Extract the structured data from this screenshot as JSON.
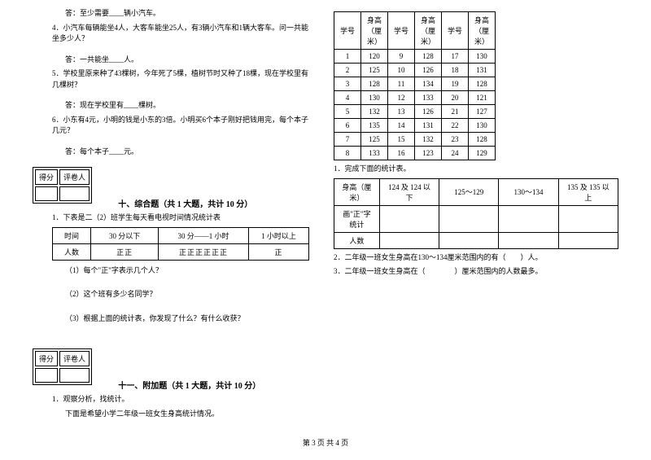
{
  "left": {
    "q3_ans": "答：至少需要____辆小汽车。",
    "q4": "4．小汽车每辆能坐4人，大客车能坐25人，有3辆小汽车和1辆大客车。问一共能坐多少人？",
    "q4_ans": "答：一共能坐____人。",
    "q5": "5．学校里原来种了43棵树，今年死了5棵，植树节时又种了18棵，现在学校里有几棵树？",
    "q5_ans": "答：现在学校里有____棵树。",
    "q6": "6．小东有4元，小明的钱是小东的3倍。小明买6个本子刚好把钱用完，每个本子几元？",
    "q6_ans": "答：每个本子____元。",
    "score_label1": "得分",
    "score_label2": "评卷人",
    "section10": "十、综合题（共 1 大题，共计 10 分）",
    "s10_q1": "1．下表是二（2）班学生每天看电视时间情况统计表",
    "tv_headers": [
      "时间",
      "30 分以下",
      "30 分——1 小时",
      "1 小时以上"
    ],
    "tv_row_label": "人数",
    "tv_tally": [
      "正正",
      "正正正正正正",
      "正"
    ],
    "s10_sub1": "（1）每个\"正\"字表示几个人？",
    "s10_sub2": "（2）这个班有多少名同学？",
    "s10_sub3": "（3）根据上面的统计表，你发现了什么？有什么收获？",
    "section11": "十一、附加题（共 1 大题，共计 10 分）",
    "s11_q1": "1．观察分析，找统计。",
    "s11_q1b": "下面是希望小学二年级一班女生身高统计情况。"
  },
  "right": {
    "height_headers": [
      "学号",
      "身高（厘米）",
      "学号",
      "身高（厘米）",
      "学号",
      "身高（厘米）"
    ],
    "height_rows": [
      [
        "1",
        "120",
        "9",
        "128",
        "17",
        "130"
      ],
      [
        "2",
        "125",
        "10",
        "126",
        "18",
        "131"
      ],
      [
        "3",
        "128",
        "11",
        "134",
        "19",
        "128"
      ],
      [
        "4",
        "130",
        "12",
        "133",
        "20",
        "121"
      ],
      [
        "5",
        "132",
        "13",
        "126",
        "21",
        "127"
      ],
      [
        "6",
        "135",
        "14",
        "131",
        "22",
        "130"
      ],
      [
        "7",
        "125",
        "15",
        "132",
        "23",
        "128"
      ],
      [
        "8",
        "133",
        "16",
        "123",
        "24",
        "129"
      ]
    ],
    "r_q1": "1．完成下面的统计表。",
    "stat_headers": [
      "身高（厘米）",
      "124 及 124 以下",
      "125～129",
      "130～134",
      "135 及 135 以上"
    ],
    "stat_row1": "画\"正\"字统计",
    "stat_row2": "人数",
    "r_q2": "2．二年级一班女生身高在130～134厘米范围内的有（　　）人。",
    "r_q3": "3．二年级一班女生身高在（　　　　）厘米范围内的人数最多。"
  },
  "footer": "第 3 页 共 4 页"
}
